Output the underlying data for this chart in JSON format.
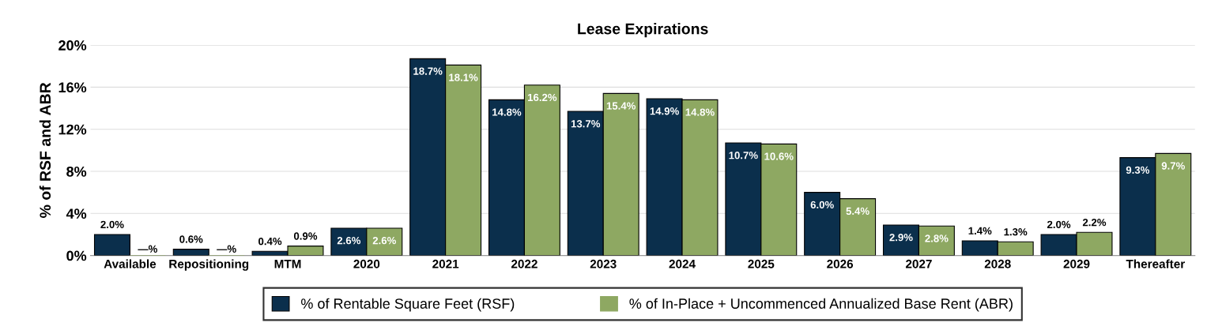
{
  "chart_data": {
    "type": "bar",
    "title": "Lease Expirations",
    "ylabel": "% of RSF and ABR",
    "categories": [
      "Available",
      "Repositioning",
      "MTM",
      "2020",
      "2021",
      "2022",
      "2023",
      "2024",
      "2025",
      "2026",
      "2027",
      "2028",
      "2029",
      "Thereafter"
    ],
    "series": [
      {
        "name": "% of Rentable Square Feet (RSF)",
        "color": "#0b2f4c",
        "values": [
          2.0,
          0.6,
          0.4,
          2.6,
          18.7,
          14.8,
          13.7,
          14.9,
          10.7,
          6.0,
          2.9,
          1.4,
          2.0,
          9.3
        ],
        "value_labels": [
          "2.0%",
          "0.6%",
          "0.4%",
          "2.6%",
          "18.7%",
          "14.8%",
          "13.7%",
          "14.9%",
          "10.7%",
          "6.0%",
          "2.9%",
          "1.4%",
          "2.0%",
          "9.3%"
        ]
      },
      {
        "name": "% of In-Place + Uncommenced Annualized Base Rent (ABR)",
        "color": "#8ea862",
        "values": [
          0,
          0,
          0.9,
          2.6,
          18.1,
          16.2,
          15.4,
          14.8,
          10.6,
          5.4,
          2.8,
          1.3,
          2.2,
          9.7
        ],
        "value_labels": [
          "—%",
          "—%",
          "0.9%",
          "2.6%",
          "18.1%",
          "16.2%",
          "15.4%",
          "14.8%",
          "10.6%",
          "5.4%",
          "2.8%",
          "1.3%",
          "2.2%",
          "9.7%"
        ]
      }
    ],
    "ylim": [
      0,
      20
    ],
    "yticks": [
      {
        "value": 0,
        "label": "0%"
      },
      {
        "value": 4,
        "label": "4%"
      },
      {
        "value": 8,
        "label": "8%"
      },
      {
        "value": 12,
        "label": "12%"
      },
      {
        "value": 16,
        "label": "16%"
      },
      {
        "value": 20,
        "label": "20%"
      }
    ],
    "grid": "y",
    "legend": "bottom"
  }
}
